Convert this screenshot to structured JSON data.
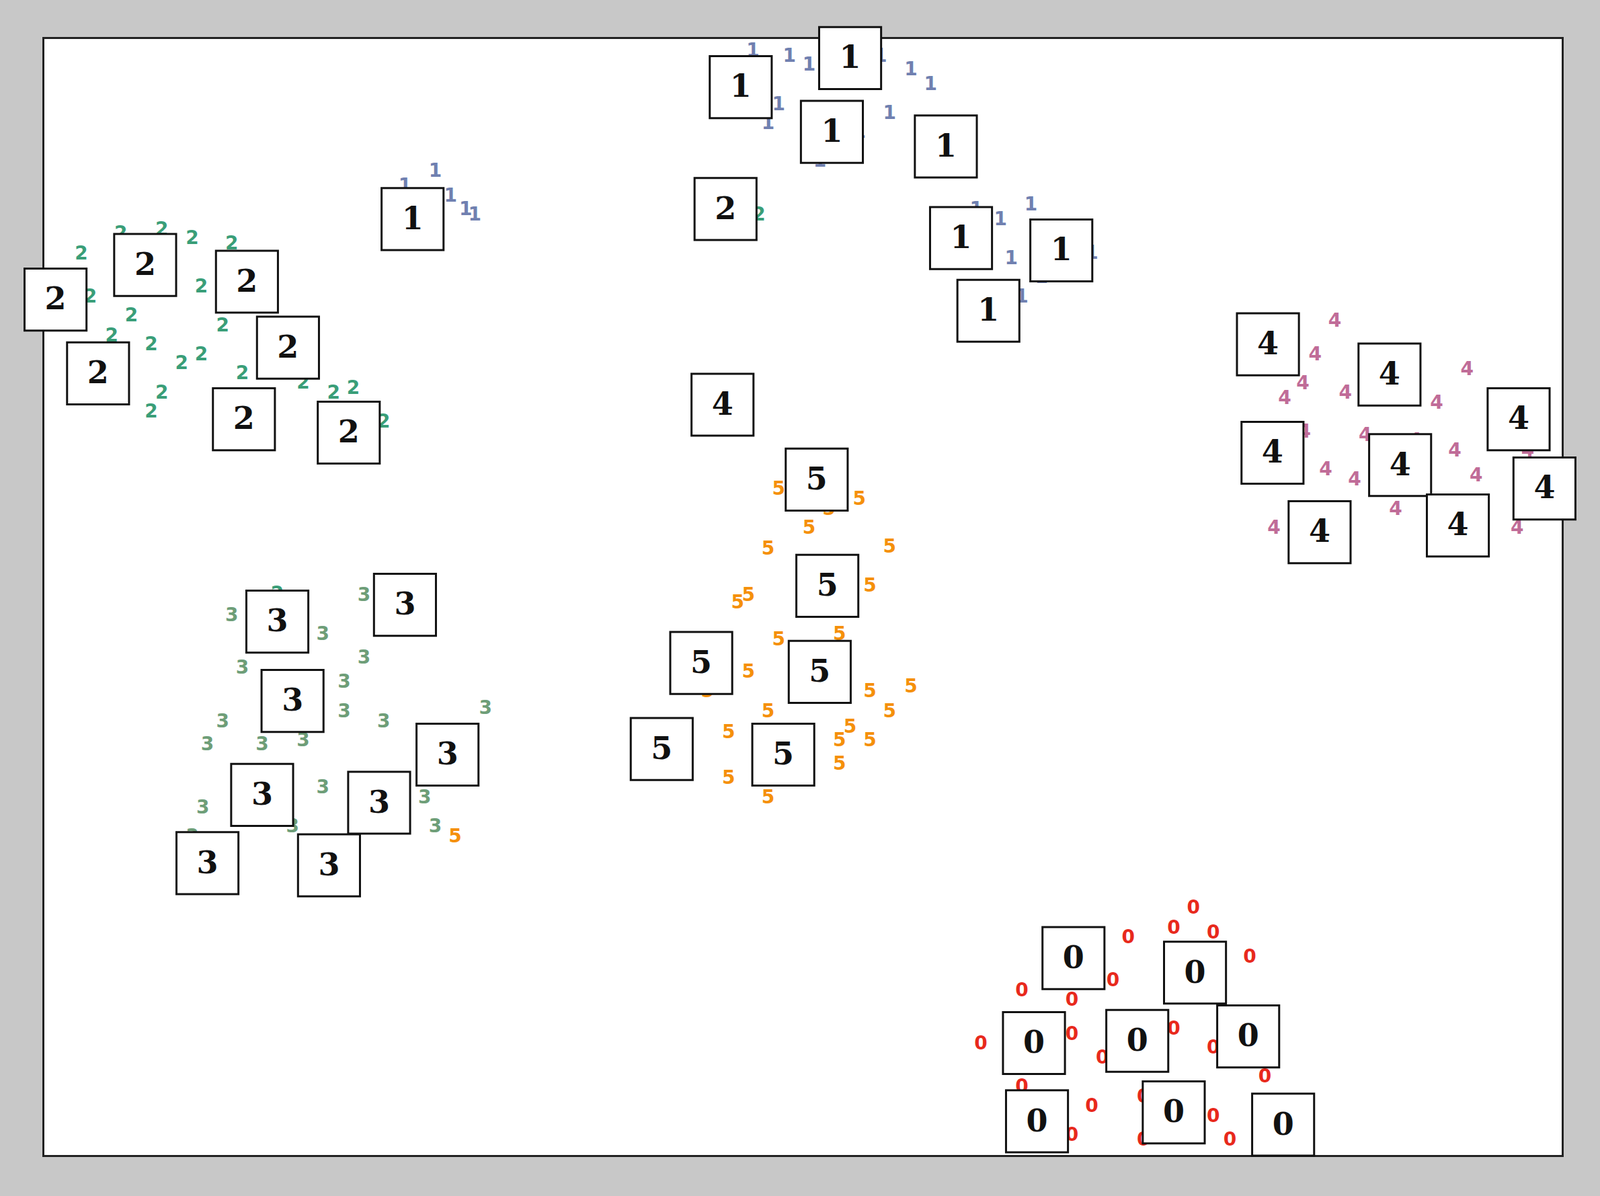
{
  "chart_data": {
    "type": "scatter",
    "xlim": [
      0,
      100
    ],
    "ylim": [
      0,
      100
    ],
    "tick_labels": false,
    "series": [
      {
        "name": "0",
        "color": "#e8291c",
        "x": [
          75.7,
          74.4,
          71.4,
          77.0,
          79.4,
          64.4,
          67.7,
          70.4,
          76.4,
          61.7,
          67.7,
          69.7,
          74.4,
          77.0,
          80.4,
          64.4,
          69.0,
          72.4,
          77.0,
          78.1,
          72.4,
          67.7
        ],
        "y": [
          22.2,
          20.4,
          19.6,
          20.0,
          17.8,
          14.8,
          14.0,
          15.7,
          14.8,
          10.1,
          10.9,
          8.8,
          11.4,
          9.7,
          7.1,
          6.2,
          4.5,
          5.3,
          3.6,
          1.5,
          1.5,
          1.9
        ]
      },
      {
        "name": "1",
        "color": "#7080b0",
        "x": [
          46.7,
          49.1,
          50.4,
          52.4,
          55.1,
          57.1,
          58.4,
          55.7,
          53.7,
          51.1,
          48.4,
          47.7,
          60.4,
          57.7,
          61.4,
          63.0,
          65.0,
          63.7,
          65.7,
          67.7,
          69.0,
          64.4,
          23.8,
          25.8,
          27.8,
          28.4,
          26.8
        ],
        "y": [
          98.9,
          98.4,
          97.6,
          95.9,
          98.4,
          97.2,
          95.9,
          93.3,
          91.6,
          89.0,
          94.1,
          92.4,
          88.1,
          89.8,
          84.7,
          83.8,
          85.1,
          80.3,
          78.6,
          80.3,
          80.8,
          76.9,
          86.8,
          88.1,
          84.7,
          84.2,
          85.9
        ]
      },
      {
        "name": "2",
        "color": "#3a9e78",
        "x": [
          2.5,
          5.1,
          7.8,
          9.8,
          12.4,
          3.1,
          5.8,
          7.1,
          9.1,
          10.4,
          11.8,
          14.4,
          17.1,
          19.1,
          20.4,
          22.4,
          7.8,
          7.1,
          4.5,
          10.4,
          16.4,
          13.1,
          47.1,
          15.4
        ],
        "y": [
          80.7,
          82.5,
          82.9,
          82.1,
          81.6,
          76.9,
          75.2,
          72.6,
          70.9,
          71.7,
          74.3,
          72.6,
          69.2,
          68.3,
          68.7,
          65.7,
          68.3,
          66.6,
          73.4,
          77.8,
          71.7,
          70.0,
          84.2,
          50.3
        ]
      },
      {
        "name": "3",
        "color": "#6e9e78",
        "x": [
          12.4,
          18.4,
          21.1,
          21.1,
          13.1,
          19.8,
          11.8,
          14.4,
          17.1,
          22.4,
          29.1,
          10.8,
          18.4,
          10.5,
          25.1,
          25.8,
          9.8,
          16.4,
          19.8,
          15.1
        ],
        "y": [
          48.4,
          46.7,
          50.2,
          44.6,
          43.7,
          42.4,
          38.9,
          36.8,
          37.2,
          38.9,
          40.1,
          36.8,
          33.0,
          31.2,
          32.1,
          29.5,
          28.6,
          29.5,
          39.8,
          33.8
        ]
      },
      {
        "name": "4",
        "color": "#c06c98",
        "x": [
          85.0,
          83.7,
          82.9,
          85.7,
          90.3,
          93.7,
          91.7,
          81.7,
          83.0,
          84.4,
          86.3,
          90.3,
          92.9,
          97.7,
          98.5,
          81.0,
          89.0,
          94.3,
          97.0,
          87.0
        ],
        "y": [
          74.7,
          71.7,
          69.1,
          68.3,
          70.0,
          70.4,
          67.4,
          67.8,
          64.8,
          61.4,
          60.5,
          64.0,
          63.1,
          63.1,
          60.5,
          56.2,
          57.9,
          60.9,
          56.2,
          64.5
        ]
      },
      {
        "name": "5",
        "color": "#f5900a",
        "x": [
          48.4,
          51.7,
          53.7,
          50.4,
          47.7,
          55.7,
          46.4,
          54.4,
          45.7,
          48.4,
          52.4,
          46.4,
          43.7,
          54.4,
          57.1,
          55.7,
          45.1,
          47.7,
          52.4,
          54.4,
          45.1,
          47.7,
          52.4,
          53.1,
          27.1
        ],
        "y": [
          59.7,
          57.9,
          58.8,
          56.2,
          54.3,
          54.5,
          50.2,
          51.0,
          49.5,
          46.2,
          46.7,
          43.3,
          41.6,
          41.6,
          42.0,
          39.8,
          37.9,
          39.8,
          37.2,
          37.2,
          33.8,
          32.1,
          35.1,
          38.4,
          28.6
        ]
      }
    ],
    "images": [
      {
        "label": "1",
        "x": 45.9,
        "y": 95.6
      },
      {
        "label": "1",
        "x": 53.1,
        "y": 98.2
      },
      {
        "label": "1",
        "x": 51.9,
        "y": 91.6
      },
      {
        "label": "1",
        "x": 59.4,
        "y": 90.3
      },
      {
        "label": "1",
        "x": 60.4,
        "y": 82.1
      },
      {
        "label": "1",
        "x": 67.0,
        "y": 81.0
      },
      {
        "label": "1",
        "x": 62.2,
        "y": 75.6
      },
      {
        "label": "1",
        "x": 24.3,
        "y": 83.8
      },
      {
        "label": "2",
        "x": 44.9,
        "y": 84.7
      },
      {
        "label": "2",
        "x": 0.8,
        "y": 76.6
      },
      {
        "label": "2",
        "x": 6.7,
        "y": 79.7
      },
      {
        "label": "2",
        "x": 13.4,
        "y": 78.2
      },
      {
        "label": "2",
        "x": 16.1,
        "y": 72.3
      },
      {
        "label": "2",
        "x": 3.6,
        "y": 70.0
      },
      {
        "label": "2",
        "x": 13.2,
        "y": 65.9
      },
      {
        "label": "2",
        "x": 20.1,
        "y": 64.7
      },
      {
        "label": "4",
        "x": 44.7,
        "y": 67.2
      },
      {
        "label": "4",
        "x": 80.6,
        "y": 72.6
      },
      {
        "label": "4",
        "x": 88.6,
        "y": 69.9
      },
      {
        "label": "4",
        "x": 97.1,
        "y": 65.9
      },
      {
        "label": "4",
        "x": 80.9,
        "y": 62.9
      },
      {
        "label": "4",
        "x": 89.3,
        "y": 61.8
      },
      {
        "label": "4",
        "x": 98.8,
        "y": 59.7
      },
      {
        "label": "4",
        "x": 84.0,
        "y": 55.8
      },
      {
        "label": "4",
        "x": 93.1,
        "y": 56.4
      },
      {
        "label": "5",
        "x": 50.9,
        "y": 60.5
      },
      {
        "label": "5",
        "x": 51.6,
        "y": 51.0
      },
      {
        "label": "5",
        "x": 43.3,
        "y": 44.1
      },
      {
        "label": "5",
        "x": 51.1,
        "y": 43.3
      },
      {
        "label": "5",
        "x": 40.7,
        "y": 36.4
      },
      {
        "label": "5",
        "x": 48.7,
        "y": 35.9
      },
      {
        "label": "3",
        "x": 15.4,
        "y": 47.8
      },
      {
        "label": "3",
        "x": 23.8,
        "y": 49.3
      },
      {
        "label": "3",
        "x": 16.4,
        "y": 40.7
      },
      {
        "label": "3",
        "x": 26.6,
        "y": 35.9
      },
      {
        "label": "3",
        "x": 14.4,
        "y": 32.3
      },
      {
        "label": "3",
        "x": 22.1,
        "y": 31.6
      },
      {
        "label": "3",
        "x": 10.8,
        "y": 26.2
      },
      {
        "label": "3",
        "x": 18.8,
        "y": 26.0
      },
      {
        "label": "0",
        "x": 67.8,
        "y": 17.7
      },
      {
        "label": "0",
        "x": 75.8,
        "y": 16.4
      },
      {
        "label": "0",
        "x": 65.2,
        "y": 10.1
      },
      {
        "label": "0",
        "x": 72.0,
        "y": 10.3
      },
      {
        "label": "0",
        "x": 79.3,
        "y": 10.7
      },
      {
        "label": "0",
        "x": 65.4,
        "y": 3.1
      },
      {
        "label": "0",
        "x": 74.4,
        "y": 3.9
      },
      {
        "label": "0",
        "x": 81.6,
        "y": 2.8
      }
    ]
  }
}
